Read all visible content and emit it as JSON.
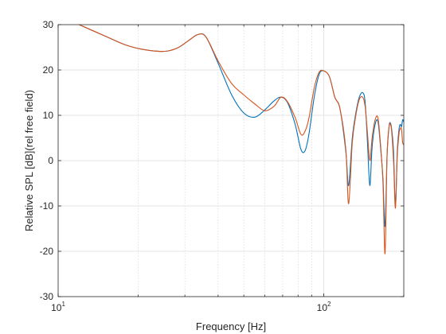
{
  "chart_data": {
    "type": "line",
    "title": "",
    "xlabel": "Frequency [Hz]",
    "ylabel": "Relative SPL  [dB](rel free field)",
    "xscale": "log",
    "xlim": [
      10,
      200
    ],
    "ylim": [
      -30,
      30
    ],
    "grid": "major and minor",
    "legend": "none",
    "y_ticks": [
      {
        "value": -30,
        "label": "-30"
      },
      {
        "value": -20,
        "label": "-20"
      },
      {
        "value": -10,
        "label": "-10"
      },
      {
        "value": 0,
        "label": "0"
      },
      {
        "value": 10,
        "label": "10"
      },
      {
        "value": 20,
        "label": "20"
      },
      {
        "value": 30,
        "label": "30"
      }
    ],
    "x_ticks": [
      {
        "value": 10,
        "base": "10",
        "exponent": "1"
      },
      {
        "value": 100,
        "base": "10",
        "exponent": "2"
      }
    ],
    "series": [
      {
        "color": "#0072bd",
        "x": [
          12,
          15,
          18,
          21,
          25,
          28,
          31,
          33.5,
          36,
          40,
          45,
          50,
          55,
          60,
          65,
          69,
          73,
          78,
          82,
          85,
          88,
          92,
          96,
          100,
          105,
          110,
          115,
          121,
          124,
          128,
          132,
          136,
          140,
          143,
          146,
          149,
          152,
          156,
          160,
          164,
          167,
          170,
          173,
          176,
          178,
          180,
          183,
          186,
          189,
          192,
          194,
          196,
          198,
          200
        ],
        "y": [
          30,
          27.5,
          25.5,
          24.5,
          24.1,
          24.8,
          26.5,
          27.8,
          27.3,
          21.5,
          14.5,
          10.5,
          9.6,
          11.2,
          13.2,
          14.0,
          12.8,
          8.0,
          2.5,
          2.2,
          6.0,
          14.0,
          19.0,
          19.8,
          18.5,
          14.0,
          11.5,
          2.0,
          -5.5,
          5.0,
          10.5,
          14.0,
          15.0,
          13.0,
          4.0,
          -5.5,
          3.0,
          8.0,
          8.5,
          2.0,
          -4.0,
          -14.5,
          1.0,
          7.5,
          8.3,
          7.0,
          2.0,
          -10.0,
          2.0,
          7.0,
          8.0,
          7.5,
          9.0,
          8.5
        ]
      },
      {
        "color": "#d95319",
        "x": [
          12,
          15,
          18,
          21,
          25,
          28,
          31,
          33.5,
          36,
          40,
          45,
          50,
          55,
          60,
          65,
          69,
          73,
          78,
          82,
          85,
          88,
          92,
          96,
          100,
          105,
          110,
          115,
          121,
          124,
          128,
          132,
          136,
          140,
          143,
          146,
          149,
          152,
          156,
          160,
          164,
          167,
          170,
          173,
          176,
          178,
          180,
          183,
          186,
          189,
          192,
          194,
          196,
          198,
          200
        ],
        "y": [
          30,
          27.5,
          25.5,
          24.5,
          24.1,
          24.8,
          26.5,
          27.8,
          27.3,
          22.0,
          17.0,
          14.5,
          12.5,
          11.0,
          12.0,
          14.0,
          13.0,
          9.5,
          5.8,
          6.5,
          9.5,
          16.0,
          19.5,
          19.8,
          18.5,
          14.0,
          11.5,
          2.5,
          -9.5,
          4.0,
          10.0,
          13.5,
          14.0,
          12.0,
          6.0,
          0.0,
          5.0,
          9.0,
          9.3,
          2.5,
          -5.0,
          -20.5,
          1.0,
          7.5,
          8.0,
          6.5,
          0.0,
          -10.5,
          1.0,
          6.0,
          7.0,
          7.0,
          4.0,
          3.5
        ]
      }
    ]
  }
}
